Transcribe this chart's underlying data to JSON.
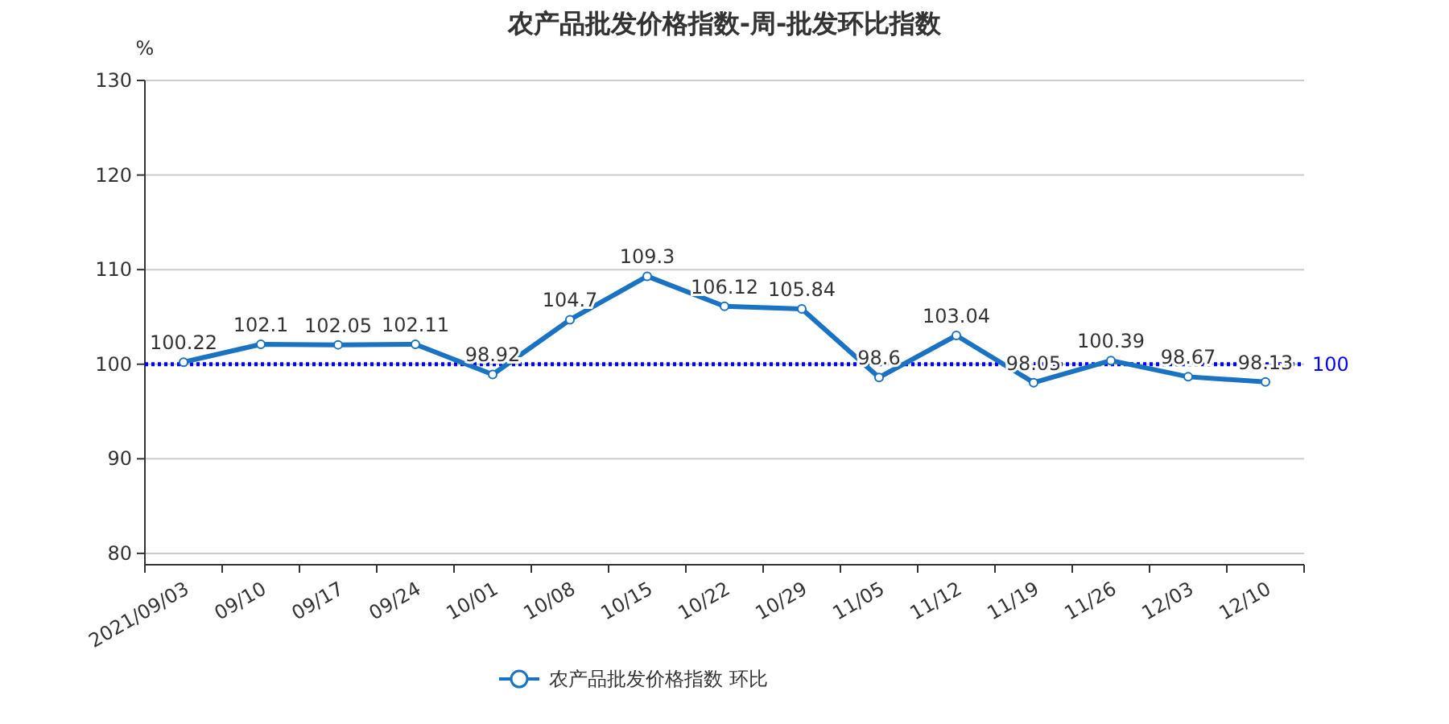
{
  "chart_data": {
    "type": "line",
    "title": "农产品批发价格指数-周-批发环比指数",
    "ylabel": "%",
    "categories": [
      "2021/09/03",
      "09/10",
      "09/17",
      "09/24",
      "10/01",
      "10/08",
      "10/15",
      "10/22",
      "10/29",
      "11/05",
      "11/12",
      "11/19",
      "11/26",
      "12/03",
      "12/10"
    ],
    "series": [
      {
        "name": "农产品批发价格指数  环比",
        "color": "#1a73c2",
        "values": [
          100.22,
          102.1,
          102.05,
          102.11,
          98.92,
          104.7,
          109.3,
          106.12,
          105.84,
          98.6,
          103.04,
          98.05,
          100.39,
          98.67,
          98.13
        ]
      }
    ],
    "ylim": [
      78.8,
      130
    ],
    "yticks": [
      80,
      90,
      100,
      110,
      120,
      130
    ],
    "grid": "y",
    "legend": "bottom",
    "marker": "circle",
    "line_style": "solid",
    "data_labels": true,
    "ref_lines": [
      {
        "axis": "y",
        "value": 100,
        "label": "100",
        "color": "#0000ff",
        "line_style": "dotted"
      }
    ]
  }
}
